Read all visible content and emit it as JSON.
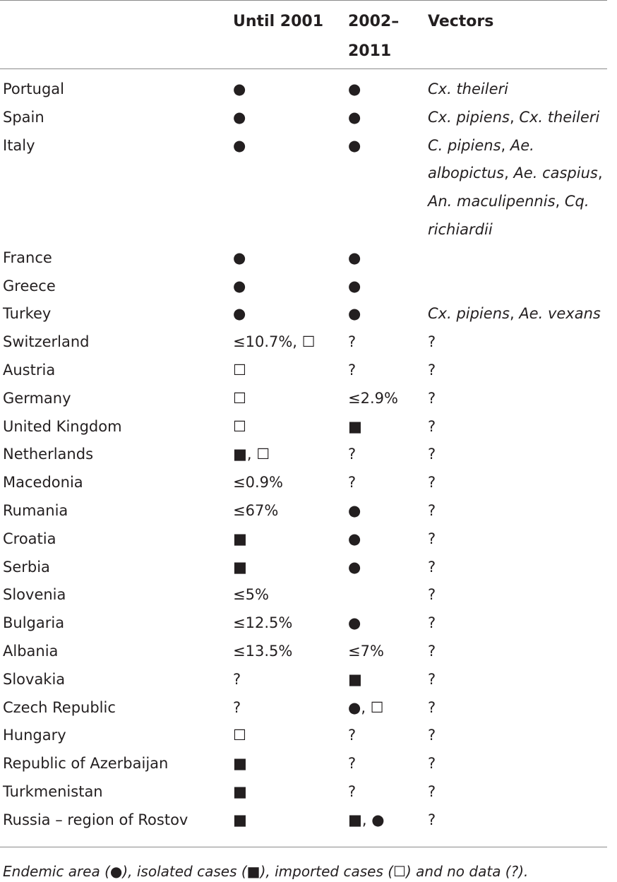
{
  "header": {
    "col1": "",
    "col2": "Until 2001",
    "col3_line1": "2002–",
    "col3_line2": "2011",
    "col4": "Vectors"
  },
  "rows": [
    {
      "country": "Portugal",
      "until_2001": "●",
      "y2002_2011": "●",
      "vectors": [
        [
          "Cx. theileri"
        ]
      ]
    },
    {
      "country": "Spain",
      "until_2001": "●",
      "y2002_2011": "●",
      "vectors": [
        [
          "Cx. pipiens",
          ", ",
          "Cx. theileri"
        ]
      ]
    },
    {
      "country": "Italy",
      "until_2001": "●",
      "y2002_2011": "●",
      "vectors": [
        [
          "C. pipiens",
          ", ",
          "Ae."
        ],
        [
          "albopictus",
          ", ",
          "Ae. caspius",
          ","
        ],
        [
          "An. maculipennis",
          ", ",
          "Cq."
        ],
        [
          "richiardii"
        ]
      ]
    },
    {
      "country": "France",
      "until_2001": "●",
      "y2002_2011": "●",
      "vectors": []
    },
    {
      "country": "Greece",
      "until_2001": "●",
      "y2002_2011": "●",
      "vectors": []
    },
    {
      "country": "Turkey",
      "until_2001": "●",
      "y2002_2011": "●",
      "vectors": [
        [
          "Cx. pipiens",
          ", ",
          "Ae. vexans"
        ]
      ]
    },
    {
      "country": "Switzerland",
      "until_2001": "≤10.7%, ☐",
      "y2002_2011": "?",
      "vectors": [
        [
          "?"
        ]
      ]
    },
    {
      "country": "Austria",
      "until_2001": "☐",
      "y2002_2011": "?",
      "vectors": [
        [
          "?"
        ]
      ]
    },
    {
      "country": "Germany",
      "until_2001": "☐",
      "y2002_2011": "≤2.9%",
      "vectors": [
        [
          "?"
        ]
      ]
    },
    {
      "country": "United Kingdom",
      "until_2001": "☐",
      "y2002_2011": "■",
      "vectors": [
        [
          "?"
        ]
      ]
    },
    {
      "country": "Netherlands",
      "until_2001": "■, ☐",
      "y2002_2011": "?",
      "vectors": [
        [
          "?"
        ]
      ]
    },
    {
      "country": "Macedonia",
      "until_2001": "≤0.9%",
      "y2002_2011": "?",
      "vectors": [
        [
          "?"
        ]
      ]
    },
    {
      "country": "Rumania",
      "until_2001": "≤67%",
      "y2002_2011": "●",
      "vectors": [
        [
          "?"
        ]
      ]
    },
    {
      "country": "Croatia",
      "until_2001": "■",
      "y2002_2011": "●",
      "vectors": [
        [
          "?"
        ]
      ]
    },
    {
      "country": "Serbia",
      "until_2001": "■",
      "y2002_2011": "●",
      "vectors": [
        [
          "?"
        ]
      ]
    },
    {
      "country": "Slovenia",
      "until_2001": "≤5%",
      "y2002_2011": "",
      "vectors": [
        [
          "?"
        ]
      ]
    },
    {
      "country": "Bulgaria",
      "until_2001": "≤12.5%",
      "y2002_2011": "●",
      "vectors": [
        [
          "?"
        ]
      ]
    },
    {
      "country": "Albania",
      "until_2001": "≤13.5%",
      "y2002_2011": "≤7%",
      "vectors": [
        [
          "?"
        ]
      ]
    },
    {
      "country": "Slovakia",
      "until_2001": "?",
      "y2002_2011": "■",
      "vectors": [
        [
          "?"
        ]
      ]
    },
    {
      "country": "Czech Republic",
      "until_2001": "?",
      "y2002_2011": "●, ☐",
      "vectors": [
        [
          "?"
        ]
      ]
    },
    {
      "country": "Hungary",
      "until_2001": "☐",
      "y2002_2011": "?",
      "vectors": [
        [
          "?"
        ]
      ]
    },
    {
      "country": "Republic of Azerbaijan",
      "until_2001": "■",
      "y2002_2011": "?",
      "vectors": [
        [
          "?"
        ]
      ]
    },
    {
      "country": "Turkmenistan",
      "until_2001": "■",
      "y2002_2011": "?",
      "vectors": [
        [
          "?"
        ]
      ]
    },
    {
      "country": "Russia – region of Rostov",
      "until_2001": "■",
      "y2002_2011": "■, ●",
      "vectors": [
        [
          "?"
        ]
      ]
    }
  ],
  "footnote": {
    "parts": [
      "Endemic area (",
      "●",
      "), isolated cases (",
      "■",
      "), imported cases (",
      "☐",
      ") and no data (?)."
    ]
  }
}
